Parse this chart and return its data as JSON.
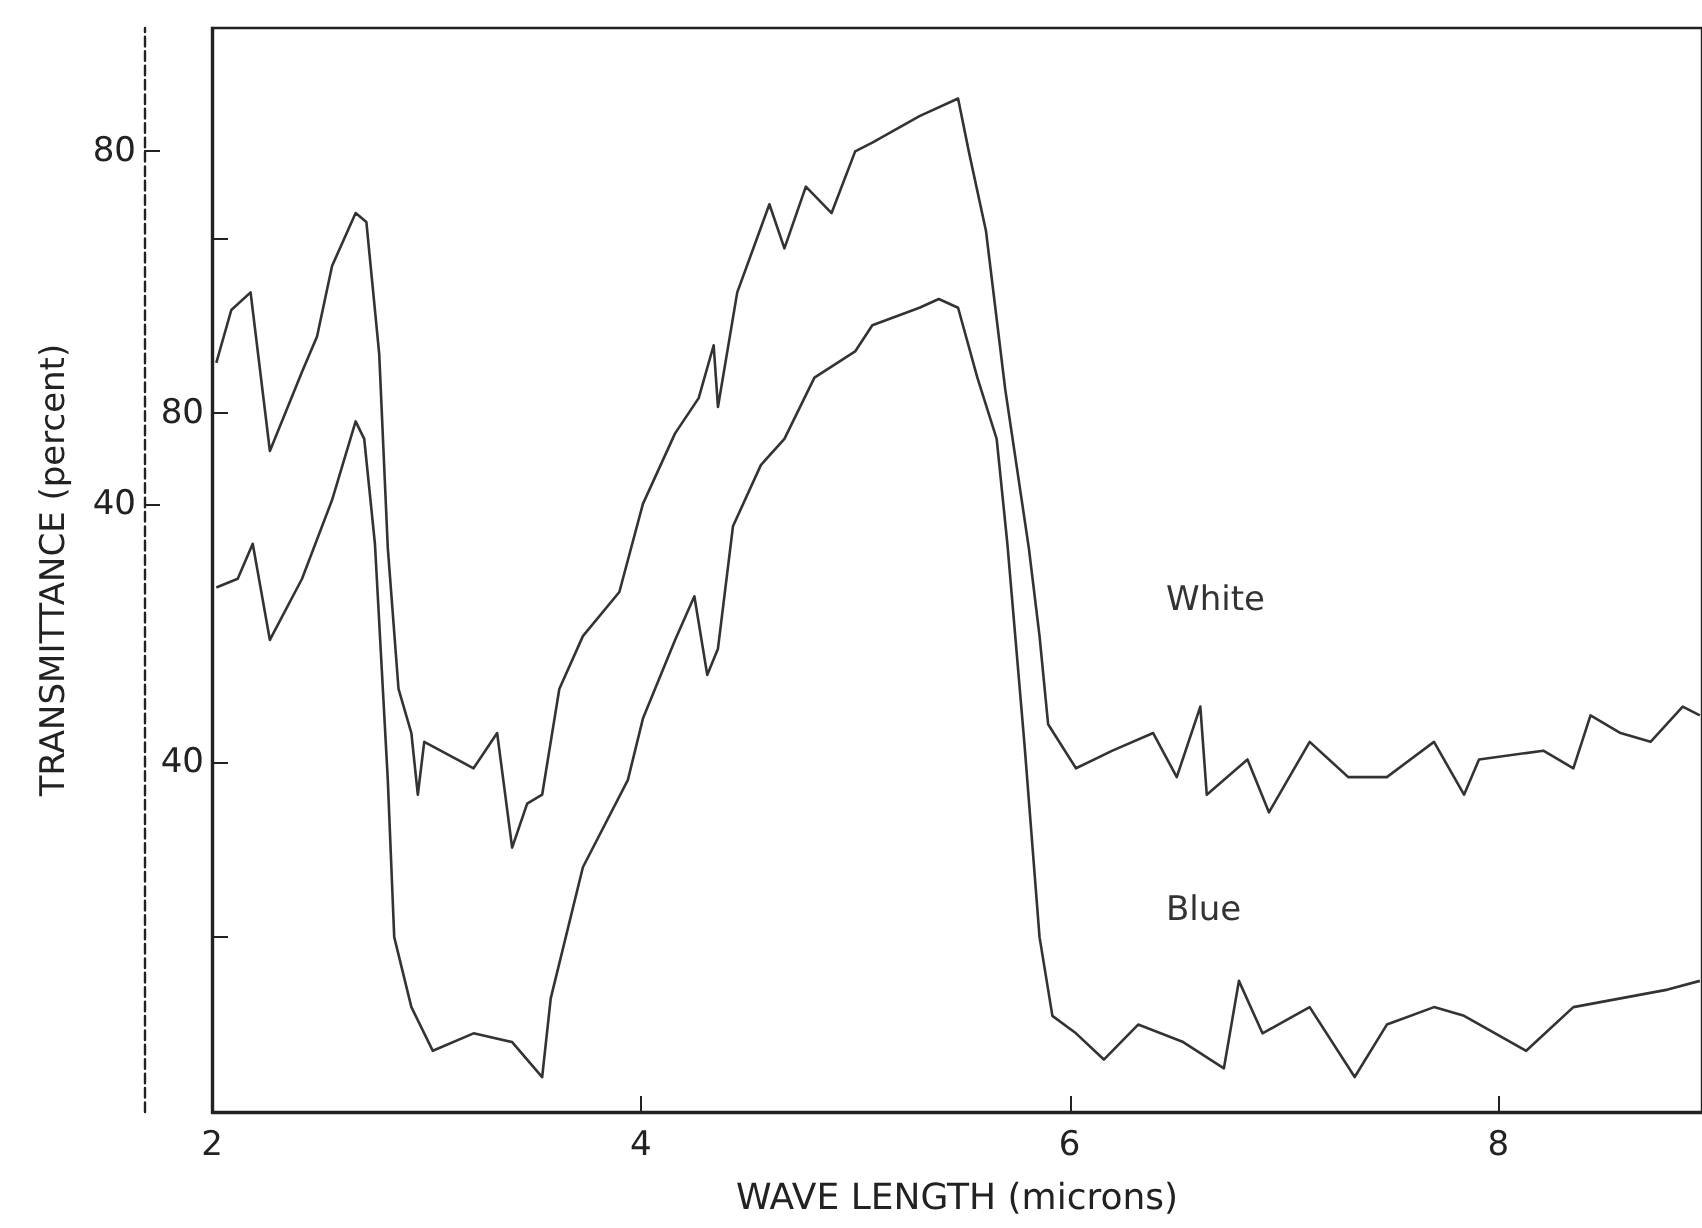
{
  "chart_data": {
    "type": "line",
    "xlabel": "WAVE LENGTH (microns)",
    "ylabel": "TRANSMITTANCE (percent)",
    "xlim": [
      2,
      8.95
    ],
    "xticks": [
      2,
      4,
      6,
      8
    ],
    "ylim": [
      -29,
      94
    ],
    "yticks": [
      40,
      80
    ],
    "y2lim": [
      0,
      124
    ],
    "y2ticks": [
      {
        "value": 20,
        "label": null
      },
      40,
      80,
      {
        "value": 100,
        "label": null
      }
    ],
    "grid": false,
    "legend": false,
    "marker": "none",
    "line_style": "solid",
    "series": [
      {
        "name": "White",
        "color": "#333333",
        "axis": "y",
        "x": [
          2.02,
          2.09,
          2.18,
          2.27,
          2.42,
          2.49,
          2.56,
          2.67,
          2.72,
          2.78,
          2.82,
          2.87,
          2.93,
          2.96,
          2.99,
          3.22,
          3.33,
          3.4,
          3.47,
          3.54,
          3.62,
          3.73,
          3.9,
          4.01,
          4.16,
          4.27,
          4.34,
          4.36,
          4.45,
          4.6,
          4.67,
          4.77,
          4.89,
          5.0,
          5.08,
          5.3,
          5.48,
          5.53,
          5.61,
          5.7,
          5.81,
          5.86,
          5.9,
          6.03,
          6.2,
          6.39,
          6.5,
          6.61,
          6.64,
          6.83,
          6.93,
          7.12,
          7.3,
          7.48,
          7.7,
          7.84,
          7.91,
          8.21,
          8.35,
          8.43,
          8.57,
          8.71,
          8.86,
          8.94
        ],
        "values": [
          56,
          62,
          64,
          46,
          55,
          59,
          67,
          73,
          72,
          57,
          35,
          19,
          14,
          7,
          13,
          10,
          14,
          1,
          6,
          7,
          19,
          25,
          30,
          40,
          48,
          52,
          58,
          51,
          64,
          74,
          69,
          76,
          73,
          80,
          81,
          84,
          86,
          80,
          71,
          53,
          35,
          25,
          15,
          10,
          12,
          14,
          9,
          17,
          7,
          11,
          5,
          13,
          9,
          9,
          13,
          7,
          11,
          12,
          10,
          16,
          14,
          13,
          17,
          16
        ]
      },
      {
        "name": "Blue",
        "color": "#333333",
        "axis": "y2",
        "x": [
          2.02,
          2.12,
          2.19,
          2.27,
          2.42,
          2.56,
          2.67,
          2.71,
          2.76,
          2.82,
          2.85,
          2.93,
          3.03,
          3.22,
          3.4,
          3.54,
          3.58,
          3.73,
          3.94,
          4.01,
          4.16,
          4.25,
          4.31,
          4.36,
          4.43,
          4.56,
          4.67,
          4.81,
          5.0,
          5.08,
          5.3,
          5.39,
          5.48,
          5.57,
          5.66,
          5.71,
          5.79,
          5.86,
          5.92,
          6.03,
          6.16,
          6.32,
          6.53,
          6.72,
          6.79,
          6.9,
          7.12,
          7.33,
          7.48,
          7.7,
          7.84,
          8.13,
          8.35,
          8.57,
          8.79,
          8.94
        ],
        "values": [
          60,
          61,
          65,
          54,
          61,
          70,
          79,
          77,
          65,
          38,
          20,
          12,
          7,
          9,
          8,
          4,
          13,
          28,
          38,
          45,
          54,
          59,
          50,
          53,
          67,
          74,
          77,
          84,
          87,
          90,
          92,
          93,
          92,
          84,
          77,
          65,
          42,
          20,
          11,
          9,
          6,
          10,
          8,
          5,
          15,
          9,
          12,
          4,
          10,
          12,
          11,
          7,
          12,
          13,
          14,
          15
        ]
      }
    ]
  }
}
